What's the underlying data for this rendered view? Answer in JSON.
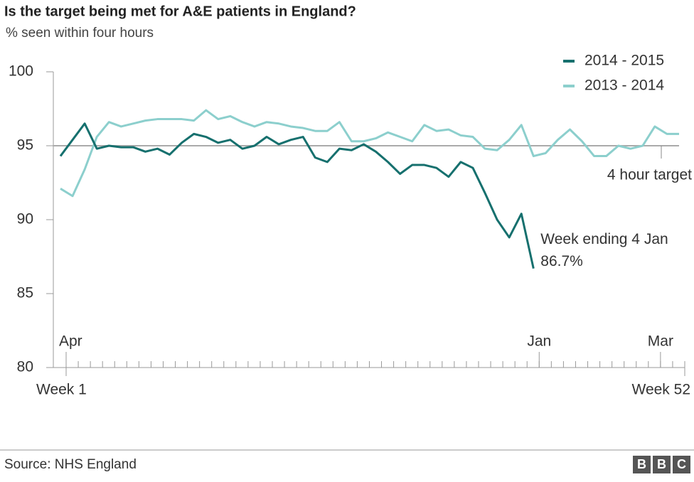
{
  "chart_data": {
    "type": "line",
    "title": "Is the target being met for A&E patients in England?",
    "subtitle": "% seen within four hours",
    "x": [
      1,
      2,
      3,
      4,
      5,
      6,
      7,
      8,
      9,
      10,
      11,
      12,
      13,
      14,
      15,
      16,
      17,
      18,
      19,
      20,
      21,
      22,
      23,
      24,
      25,
      26,
      27,
      28,
      29,
      30,
      31,
      32,
      33,
      34,
      35,
      36,
      37,
      38,
      39,
      40,
      41,
      42,
      43,
      44,
      45,
      46,
      47,
      48,
      49,
      50,
      51,
      52
    ],
    "xlim": [
      1,
      52
    ],
    "xticks": [
      {
        "value": 1,
        "label": "Week 1"
      },
      {
        "value": 52,
        "label": "Week 52"
      }
    ],
    "month_labels": [
      {
        "value": 1,
        "label": "Apr"
      },
      {
        "value": 40,
        "label": "Jan"
      },
      {
        "value": 50,
        "label": "Mar"
      }
    ],
    "ylim": [
      80,
      100
    ],
    "yticks": [
      80,
      85,
      90,
      95,
      100
    ],
    "target": {
      "value": 95,
      "label": "4 hour target"
    },
    "series": [
      {
        "name": "2014 - 2015",
        "color": "#16706e",
        "values": [
          94.3,
          95.4,
          96.5,
          94.8,
          95.0,
          94.9,
          94.9,
          94.6,
          94.8,
          94.4,
          95.2,
          95.8,
          95.6,
          95.2,
          95.4,
          94.8,
          95.0,
          95.6,
          95.1,
          95.4,
          95.6,
          94.2,
          93.9,
          94.8,
          94.7,
          95.1,
          94.6,
          93.9,
          93.1,
          93.7,
          93.7,
          93.5,
          92.9,
          93.9,
          93.5,
          91.8,
          90.0,
          88.8,
          90.4,
          86.7,
          null,
          null,
          null,
          null,
          null,
          null,
          null,
          null,
          null,
          null,
          null,
          null
        ],
        "value_labels": [
          null,
          null,
          null,
          null,
          null,
          null,
          null,
          null,
          null,
          null,
          null,
          null,
          null,
          null,
          null,
          null,
          null,
          null,
          null,
          null,
          null,
          null,
          null,
          null,
          null,
          null,
          null,
          null,
          null,
          null,
          null,
          null,
          null,
          null,
          null,
          null,
          null,
          null,
          null,
          "86.7%",
          null,
          null,
          null,
          null,
          null,
          null,
          null,
          null,
          null,
          null,
          null,
          null
        ]
      },
      {
        "name": "2013 - 2014",
        "color": "#8ccfcd",
        "values": [
          92.1,
          91.6,
          93.4,
          95.6,
          96.6,
          96.3,
          96.5,
          96.7,
          96.8,
          96.8,
          96.8,
          96.7,
          97.4,
          96.8,
          97.0,
          96.6,
          96.3,
          96.6,
          96.5,
          96.3,
          96.2,
          96.0,
          96.0,
          96.6,
          95.3,
          95.3,
          95.5,
          95.9,
          95.6,
          95.3,
          96.4,
          96.0,
          96.1,
          95.7,
          95.6,
          94.8,
          94.7,
          95.4,
          96.4,
          94.3,
          94.5,
          95.4,
          96.1,
          95.3,
          94.3,
          94.3,
          95.0,
          94.8,
          95.0,
          96.3,
          95.8,
          95.8
        ]
      }
    ],
    "annotation": "Week ending 4 Jan",
    "source": "Source: NHS England",
    "logo": "BBC"
  }
}
